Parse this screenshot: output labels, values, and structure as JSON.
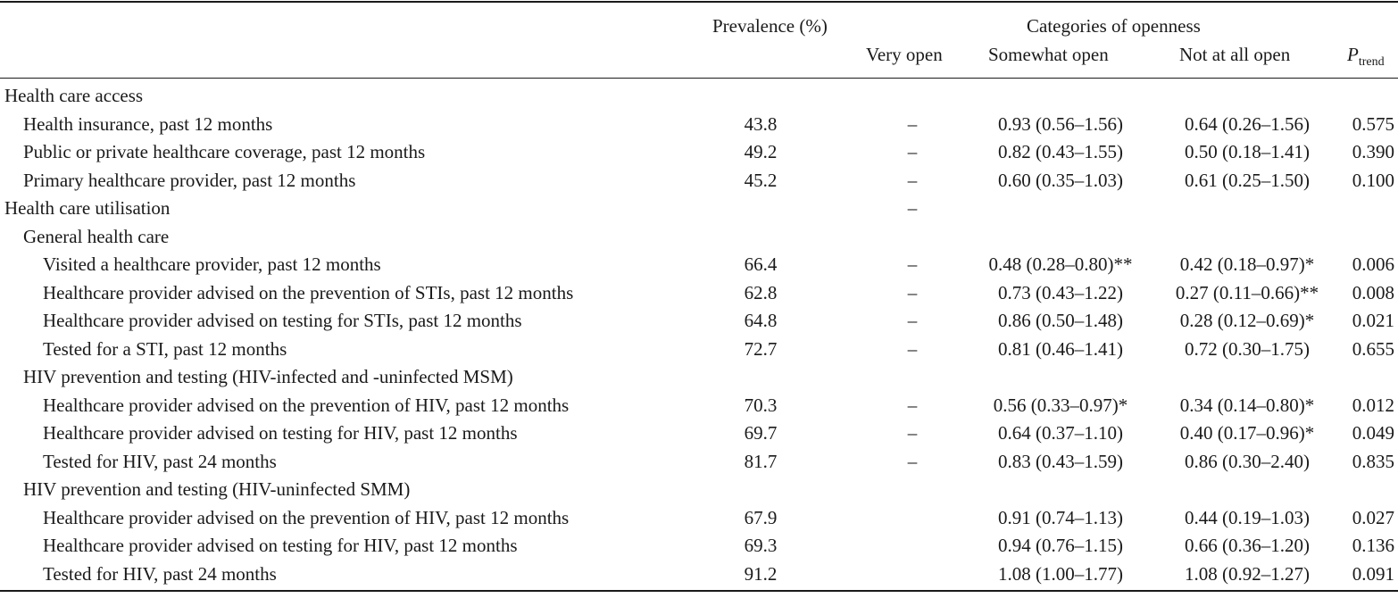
{
  "header": {
    "prevalence": "Prevalence (%)",
    "categories": "Categories of openness",
    "very_open": "Very open",
    "somewhat_open": "Somewhat open",
    "not_at_all_open": "Not at all open",
    "p_trend_main": "P",
    "p_trend_sub": "trend"
  },
  "rows": [
    {
      "label": "Health care access",
      "level": 0,
      "prev": "",
      "very": "",
      "some": "",
      "not": "",
      "p": ""
    },
    {
      "label": "Health insurance, past 12 months",
      "level": 1,
      "prev": "43.8",
      "very": "–",
      "some": "0.93 (0.56–1.56)",
      "not": "0.64 (0.26–1.56)",
      "p": "0.575"
    },
    {
      "label": "Public or private healthcare coverage, past 12 months",
      "level": 1,
      "prev": "49.2",
      "very": "–",
      "some": "0.82 (0.43–1.55)",
      "not": "0.50 (0.18–1.41)",
      "p": "0.390"
    },
    {
      "label": "Primary healthcare provider, past 12 months",
      "level": 1,
      "prev": "45.2",
      "very": "–",
      "some": "0.60 (0.35–1.03)",
      "not": "0.61 (0.25–1.50)",
      "p": "0.100"
    },
    {
      "label": "Health care utilisation",
      "level": 0,
      "prev": "",
      "very": "–",
      "some": "",
      "not": "",
      "p": ""
    },
    {
      "label": "General health care",
      "level": 1,
      "prev": "",
      "very": "",
      "some": "",
      "not": "",
      "p": ""
    },
    {
      "label": "Visited a healthcare provider, past 12 months",
      "level": 2,
      "prev": "66.4",
      "very": "–",
      "some": "0.48 (0.28–0.80)**",
      "not": "0.42 (0.18–0.97)*",
      "p": "0.006"
    },
    {
      "label": "Healthcare provider advised on the prevention of STIs, past 12 months",
      "level": 2,
      "prev": "62.8",
      "very": "–",
      "some": "0.73 (0.43–1.22)",
      "not": "0.27 (0.11–0.66)**",
      "p": "0.008"
    },
    {
      "label": "Healthcare provider advised on testing for STIs, past 12 months",
      "level": 2,
      "prev": "64.8",
      "very": "–",
      "some": "0.86 (0.50–1.48)",
      "not": "0.28 (0.12–0.69)*",
      "p": "0.021"
    },
    {
      "label": "Tested for a STI, past 12 months",
      "level": 2,
      "prev": "72.7",
      "very": "–",
      "some": "0.81 (0.46–1.41)",
      "not": "0.72 (0.30–1.75)",
      "p": "0.655"
    },
    {
      "label": "HIV prevention and testing (HIV-infected and -uninfected MSM)",
      "level": 1,
      "prev": "",
      "very": "",
      "some": "",
      "not": "",
      "p": ""
    },
    {
      "label": "Healthcare provider advised on the prevention of HIV, past 12 months",
      "level": 2,
      "prev": "70.3",
      "very": "–",
      "some": "0.56 (0.33–0.97)*",
      "not": "0.34 (0.14–0.80)*",
      "p": "0.012"
    },
    {
      "label": "Healthcare provider advised on testing for HIV, past 12 months",
      "level": 2,
      "prev": "69.7",
      "very": "–",
      "some": "0.64 (0.37–1.10)",
      "not": "0.40 (0.17–0.96)*",
      "p": "0.049"
    },
    {
      "label": "Tested for HIV, past 24 months",
      "level": 2,
      "prev": "81.7",
      "very": "–",
      "some": "0.83 (0.43–1.59)",
      "not": "0.86 (0.30–2.40)",
      "p": "0.835"
    },
    {
      "label": "HIV prevention and testing (HIV-uninfected SMM)",
      "level": 1,
      "prev": "",
      "very": "",
      "some": "",
      "not": "",
      "p": ""
    },
    {
      "label": "Healthcare provider advised on the prevention of HIV, past 12 months",
      "level": 2,
      "prev": "67.9",
      "very": "",
      "some": "0.91 (0.74–1.13)",
      "not": "0.44 (0.19–1.03)",
      "p": "0.027"
    },
    {
      "label": "Healthcare provider advised on testing for HIV, past 12 months",
      "level": 2,
      "prev": "69.3",
      "very": "",
      "some": "0.94 (0.76–1.15)",
      "not": "0.66 (0.36–1.20)",
      "p": "0.136"
    },
    {
      "label": "Tested for HIV, past 24 months",
      "level": 2,
      "prev": "91.2",
      "very": "",
      "some": "1.08 (1.00–1.77)",
      "not": "1.08 (0.92–1.27)",
      "p": "0.091"
    }
  ]
}
